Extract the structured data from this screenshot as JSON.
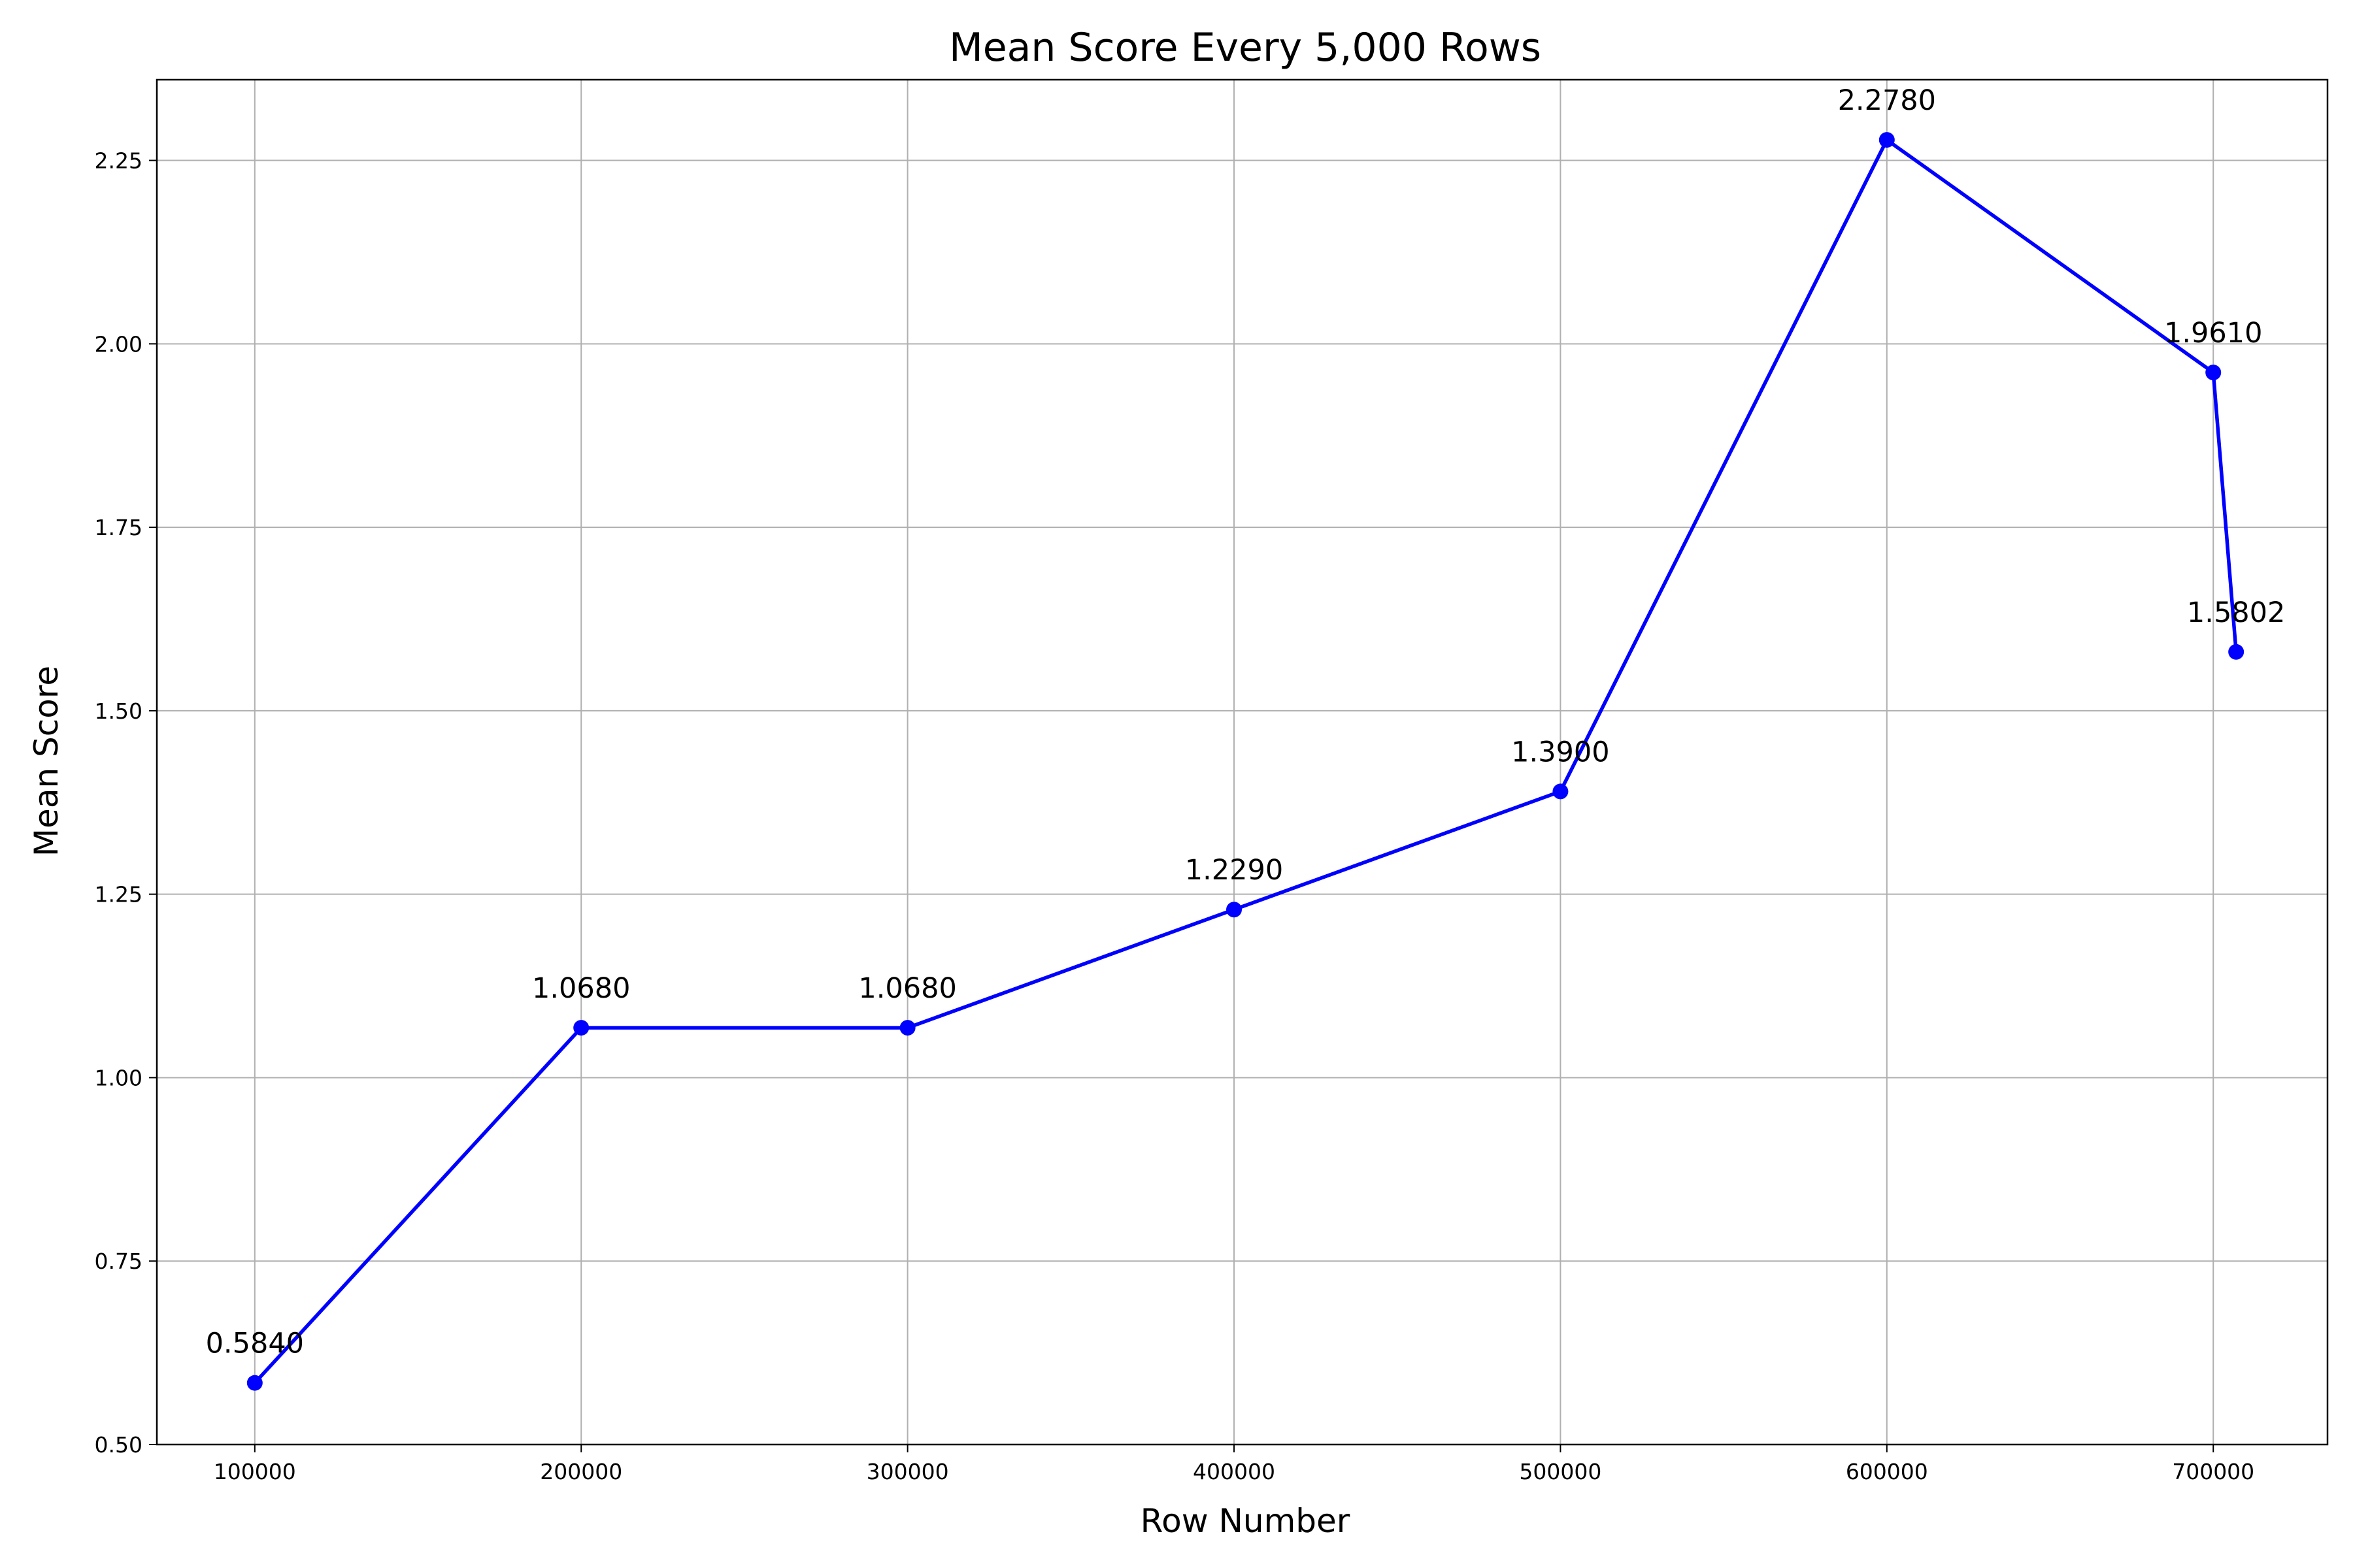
{
  "chart_data": {
    "type": "line",
    "title": "Mean Score Every 5,000 Rows",
    "xlabel": "Row Number",
    "ylabel": "Mean Score",
    "xlim": [
      70000,
      735000
    ],
    "ylim": [
      0.5,
      2.36
    ],
    "grid": true,
    "x_ticks": [
      100000,
      200000,
      300000,
      400000,
      500000,
      600000,
      700000
    ],
    "x_tick_labels": [
      "100000",
      "200000",
      "300000",
      "400000",
      "500000",
      "600000",
      "700000"
    ],
    "y_ticks": [
      0.5,
      0.75,
      1.0,
      1.25,
      1.5,
      1.75,
      2.0,
      2.25
    ],
    "y_tick_labels": [
      "0.50",
      "0.75",
      "1.00",
      "1.25",
      "1.50",
      "1.75",
      "2.00",
      "2.25"
    ],
    "series": [
      {
        "color": "#0000ff",
        "marker": "circle",
        "x": [
          100000,
          200000,
          300000,
          400000,
          500000,
          600000,
          700000,
          707000
        ],
        "values": [
          0.584,
          1.068,
          1.068,
          1.229,
          1.39,
          2.278,
          1.961,
          1.5802
        ],
        "labels": [
          "0.5840",
          "1.0680",
          "1.0680",
          "1.2290",
          "1.3900",
          "2.2780",
          "1.9610",
          "1.5802"
        ]
      }
    ]
  }
}
